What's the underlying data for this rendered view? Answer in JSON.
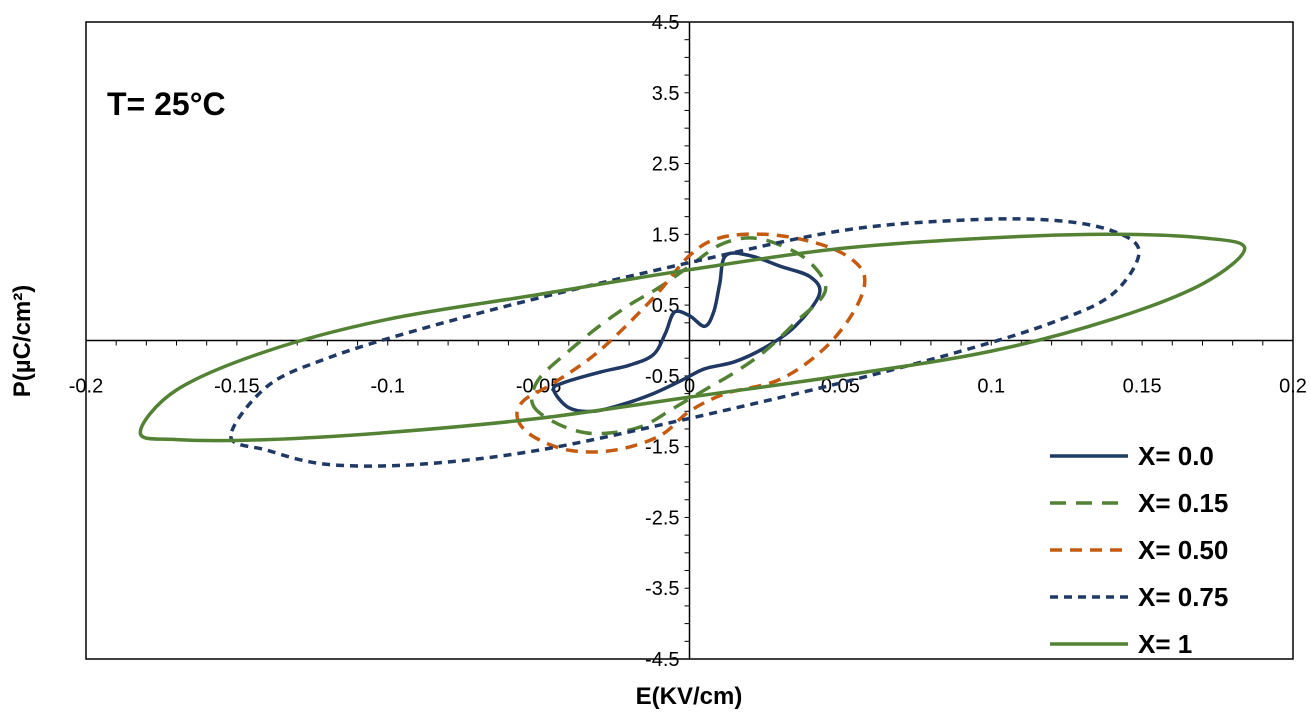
{
  "chart_data": {
    "type": "line",
    "title": "",
    "annotation": "T= 25°C",
    "xlabel": "E(KV/cm)",
    "ylabel": "P(µC/cm²)",
    "xlim": [
      -0.2,
      0.2
    ],
    "ylim": [
      -4.5,
      4.5
    ],
    "x_ticks": [
      -0.2,
      -0.15,
      -0.1,
      -0.05,
      0,
      0.05,
      0.1,
      0.15,
      0.2
    ],
    "x_tick_labels": [
      "-0.2",
      "-0.15",
      "-0.1",
      "-0.05",
      "0",
      "0.05",
      "0.1",
      "0.15",
      "0.2"
    ],
    "y_ticks": [
      4.5,
      3.5,
      2.5,
      1.5,
      0.5,
      -0.5,
      -1.5,
      -2.5,
      -3.5,
      -4.5
    ],
    "y_tick_labels": [
      "4.5",
      "3.5",
      "2.5",
      "1.5",
      "0.5",
      "-0.5",
      "-1.5",
      "-2.5",
      "-3.5",
      "-4.5"
    ],
    "grid": false,
    "legend_position": "bottom-right",
    "series": [
      {
        "name": "X= 0.0",
        "color": "#1f3864",
        "dash": "solid",
        "x": [
          -0.045,
          -0.04,
          -0.032,
          -0.022,
          -0.012,
          -0.002,
          0.005,
          0.015,
          0.025,
          0.035,
          0.043,
          0.04,
          0.03,
          0.02,
          0.012,
          0.01,
          0.008,
          0.005,
          0.0,
          -0.005,
          -0.008,
          -0.012,
          -0.02,
          -0.03,
          -0.042,
          -0.045
        ],
        "y": [
          -0.7,
          -0.95,
          -1.0,
          -0.9,
          -0.75,
          -0.55,
          -0.4,
          -0.3,
          -0.1,
          0.2,
          0.65,
          0.9,
          1.05,
          1.2,
          1.2,
          0.8,
          0.4,
          0.2,
          0.35,
          0.4,
          0.1,
          -0.2,
          -0.35,
          -0.45,
          -0.6,
          -0.7
        ]
      },
      {
        "name": "X= 0.15",
        "color": "#548235",
        "dash": "long-dash",
        "x": [
          -0.052,
          -0.045,
          -0.035,
          -0.025,
          -0.015,
          -0.005,
          0.005,
          0.015,
          0.025,
          0.035,
          0.045,
          0.04,
          0.03,
          0.02,
          0.01,
          0.0,
          -0.01,
          -0.02,
          -0.03,
          -0.04,
          -0.05,
          -0.052
        ],
        "y": [
          -0.9,
          -1.15,
          -1.3,
          -1.3,
          -1.2,
          -0.95,
          -0.7,
          -0.45,
          -0.15,
          0.25,
          0.7,
          1.1,
          1.35,
          1.45,
          1.35,
          1.05,
          0.75,
          0.5,
          0.2,
          -0.15,
          -0.55,
          -0.9
        ]
      },
      {
        "name": "X= 0.50",
        "color": "#c55a11",
        "dash": "dash",
        "x": [
          -0.057,
          -0.052,
          -0.04,
          -0.025,
          -0.01,
          0.0,
          0.012,
          0.03,
          0.045,
          0.055,
          0.058,
          0.052,
          0.04,
          0.025,
          0.01,
          0.0,
          -0.012,
          -0.03,
          -0.045,
          -0.055,
          -0.057
        ],
        "y": [
          -1.1,
          -1.35,
          -1.55,
          -1.55,
          -1.35,
          -1.0,
          -0.75,
          -0.55,
          -0.1,
          0.45,
          0.9,
          1.2,
          1.4,
          1.5,
          1.45,
          1.2,
          0.6,
          -0.15,
          -0.6,
          -0.85,
          -1.1
        ]
      },
      {
        "name": "X= 0.75",
        "color": "#203864",
        "dash": "short-dash",
        "x": [
          -0.152,
          -0.14,
          -0.12,
          -0.09,
          -0.05,
          0.0,
          0.05,
          0.09,
          0.12,
          0.14,
          0.149,
          0.14,
          0.12,
          0.09,
          0.05,
          0.0,
          -0.05,
          -0.09,
          -0.12,
          -0.14,
          -0.152
        ],
        "y": [
          -1.35,
          -1.55,
          -1.75,
          -1.75,
          -1.55,
          -1.1,
          -0.6,
          -0.15,
          0.25,
          0.65,
          1.25,
          1.55,
          1.7,
          1.7,
          1.55,
          1.1,
          0.6,
          0.15,
          -0.25,
          -0.65,
          -1.35
        ]
      },
      {
        "name": "X= 1",
        "color": "#548235",
        "dash": "solid",
        "x": [
          -0.182,
          -0.17,
          -0.14,
          -0.1,
          -0.05,
          0.0,
          0.05,
          0.1,
          0.14,
          0.17,
          0.184,
          0.17,
          0.14,
          0.1,
          0.05,
          0.0,
          -0.05,
          -0.1,
          -0.14,
          -0.17,
          -0.182
        ],
        "y": [
          -1.3,
          -1.4,
          -1.4,
          -1.3,
          -1.1,
          -0.8,
          -0.5,
          -0.15,
          0.3,
          0.8,
          1.3,
          1.45,
          1.5,
          1.45,
          1.3,
          1.0,
          0.65,
          0.3,
          -0.15,
          -0.7,
          -1.3
        ]
      }
    ]
  }
}
